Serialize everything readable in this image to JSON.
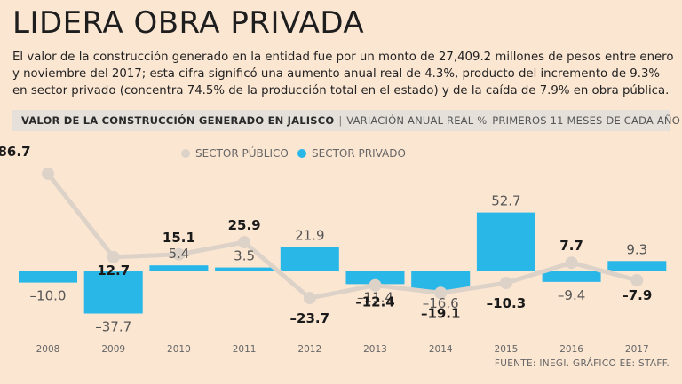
{
  "header": {
    "title": "LIDERA OBRA PRIVADA",
    "intro": "El valor de la construcción generado en la entidad fue por un monto de 27,409.2 millones de pesos entre enero y noviembre del 2017; esta cifra significó una aumento anual real de 4.3%, producto del incremento de 9.3% en sector privado (concentra 74.5% de la producción total en el estado) y de la caída de 7.9% en obra pública."
  },
  "band": {
    "bold_label": "VALOR DE LA CONSTRUCCIÓN GENERADO EN JALISCO",
    "separator": "|",
    "subtitle": "VARIACIÓN ANUAL REAL %–PRIMEROS 11 MESES DE CADA AÑO"
  },
  "colors": {
    "privado": "#29b7e8",
    "publico": "#ddd2c8",
    "publico_label": "#1a1a1a",
    "privado_label": "#555555"
  },
  "chart_data": {
    "type": "bar",
    "title": "VALOR DE LA CONSTRUCCIÓN GENERADO EN JALISCO",
    "subtitle": "VARIACIÓN ANUAL REAL %–PRIMEROS 11 MESES DE CADA AÑO",
    "categories": [
      "2008",
      "2009",
      "2010",
      "2011",
      "2012",
      "2013",
      "2014",
      "2015",
      "2016",
      "2017"
    ],
    "series": [
      {
        "name": "SECTOR PÚBLICO",
        "type": "line",
        "values": [
          86.7,
          12.7,
          15.1,
          25.9,
          -23.7,
          -12.4,
          -19.1,
          -10.3,
          7.7,
          -7.9
        ],
        "labels": [
          "86.7",
          "12.7",
          "15.1",
          "25.9",
          "–23.7",
          "–12.4",
          "–19.1",
          "–10.3",
          "7.7",
          "–7.9"
        ]
      },
      {
        "name": "SECTOR PRIVADO",
        "type": "bar",
        "values": [
          -10.0,
          -37.7,
          5.4,
          3.5,
          21.9,
          -11.4,
          -16.6,
          52.7,
          -9.4,
          9.3
        ],
        "labels": [
          "–10.0",
          "–37.7",
          "5.4",
          "3.5",
          "21.9",
          "–11.4",
          "–16.6",
          "52.7",
          "–9.4",
          "9.3"
        ]
      }
    ],
    "legend": [
      "SECTOR PÚBLICO",
      "SECTOR PRIVADO"
    ],
    "legend_position": "top-center",
    "xlabel": "",
    "ylabel": "%",
    "grid": false
  },
  "footer": {
    "source": "FUENTE: INEGI. GRÁFICO EE: STAFF."
  }
}
